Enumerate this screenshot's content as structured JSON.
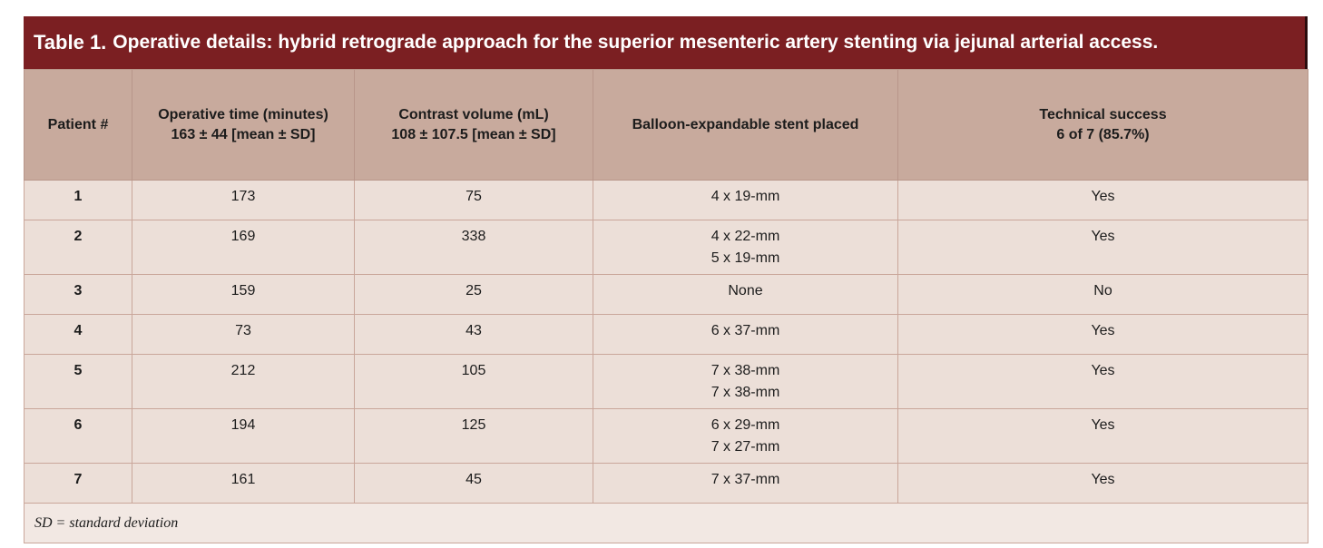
{
  "table": {
    "title_label": "Table 1.",
    "title_text": "Operative details: hybrid retrograde approach for the superior mesenteric artery stenting via jejunal arterial access.",
    "headers": [
      {
        "lines": [
          "Patient #"
        ]
      },
      {
        "lines": [
          "Operative time (minutes)",
          "163 ± 44 [mean ± SD]"
        ]
      },
      {
        "lines": [
          "Contrast volume (mL)",
          "108 ± 107.5 [mean ± SD]"
        ]
      },
      {
        "lines": [
          "Balloon-expandable stent placed"
        ]
      },
      {
        "lines": [
          "Technical success",
          "6 of 7 (85.7%)"
        ]
      }
    ],
    "rows": [
      {
        "patient": "1",
        "time": "173",
        "contrast": "75",
        "stents": [
          "4 x 19-mm"
        ],
        "success": "Yes"
      },
      {
        "patient": "2",
        "time": "169",
        "contrast": "338",
        "stents": [
          "4 x 22-mm",
          "5 x 19-mm"
        ],
        "success": "Yes"
      },
      {
        "patient": "3",
        "time": "159",
        "contrast": "25",
        "stents": [
          "None"
        ],
        "success": "No"
      },
      {
        "patient": "4",
        "time": "73",
        "contrast": "43",
        "stents": [
          "6 x 37-mm"
        ],
        "success": "Yes"
      },
      {
        "patient": "5",
        "time": "212",
        "contrast": "105",
        "stents": [
          "7 x 38-mm",
          "7 x 38-mm"
        ],
        "success": "Yes"
      },
      {
        "patient": "6",
        "time": "194",
        "contrast": "125",
        "stents": [
          "6 x 29-mm",
          "7 x 27-mm"
        ],
        "success": "Yes"
      },
      {
        "patient": "7",
        "time": "161",
        "contrast": "45",
        "stents": [
          "7 x 37-mm"
        ],
        "success": "Yes"
      }
    ],
    "footnote": "SD = standard deviation"
  },
  "colors": {
    "title_bar": "#7b1f22",
    "header_bg": "#c8aa9d",
    "row_bg": "#ecdfd8",
    "footnote_bg": "#f2e8e3"
  }
}
